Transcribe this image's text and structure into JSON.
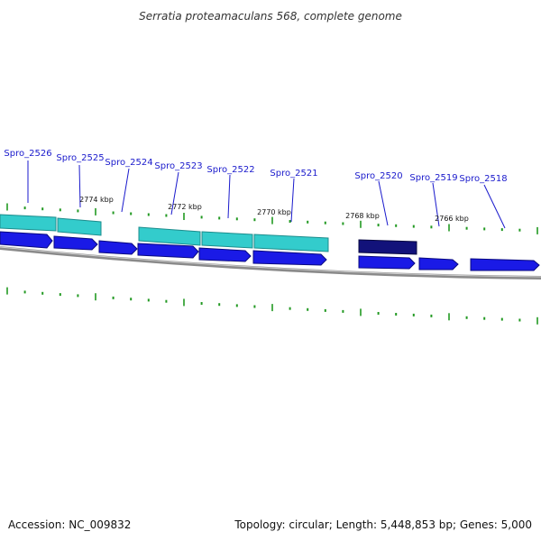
{
  "title": "Serratia proteamaculans 568, complete genome",
  "footer": {
    "accession": "Accession: NC_009832",
    "topology": "Topology: circular; Length: 5,448,853 bp; Genes: 5,000"
  },
  "colors": {
    "cds_blue": "#1a1ae6",
    "cds_cyan": "#33cccc",
    "cds_navy": "#12127a",
    "backbone": "#8a8a8a",
    "tick": "#229922",
    "label": "#1a1acc"
  },
  "genes": [
    "Spro_2526",
    "Spro_2525",
    "Spro_2524",
    "Spro_2523",
    "Spro_2522",
    "Spro_2521",
    "Spro_2520",
    "Spro_2519",
    "Spro_2518"
  ],
  "scale_labels": [
    "2774 kbp",
    "2772 kbp",
    "2770 kbp",
    "2768 kbp",
    "2766 kbp"
  ]
}
